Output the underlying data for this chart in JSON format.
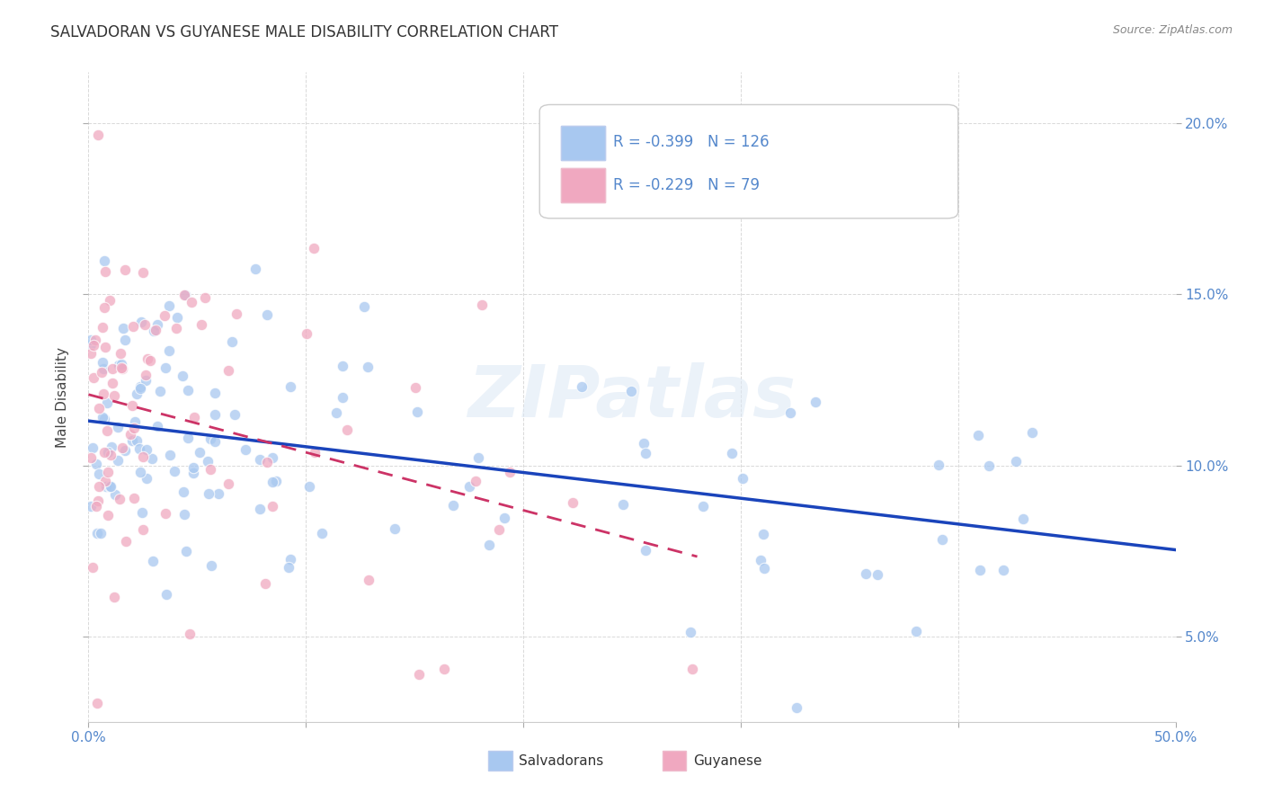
{
  "title": "SALVADORAN VS GUYANESE MALE DISABILITY CORRELATION CHART",
  "source": "Source: ZipAtlas.com",
  "ylabel": "Male Disability",
  "xlabel_salvadoran": "Salvadorans",
  "xlabel_guyanese": "Guyanese",
  "watermark": "ZIPatlas",
  "legend_sal_R": -0.399,
  "legend_sal_N": 126,
  "legend_guy_R": -0.229,
  "legend_guy_N": 79,
  "xlim": [
    0.0,
    0.5
  ],
  "ylim": [
    0.025,
    0.215
  ],
  "yticks": [
    0.05,
    0.1,
    0.15,
    0.2
  ],
  "ytick_labels": [
    "5.0%",
    "10.0%",
    "15.0%",
    "20.0%"
  ],
  "background_color": "#ffffff",
  "grid_color": "#d0d0d0",
  "salvadoran_color": "#a8c8f0",
  "guyanese_color": "#f0a8c0",
  "trend_sal_color": "#1a44bb",
  "trend_guy_color": "#cc3366",
  "tick_color": "#5588cc"
}
